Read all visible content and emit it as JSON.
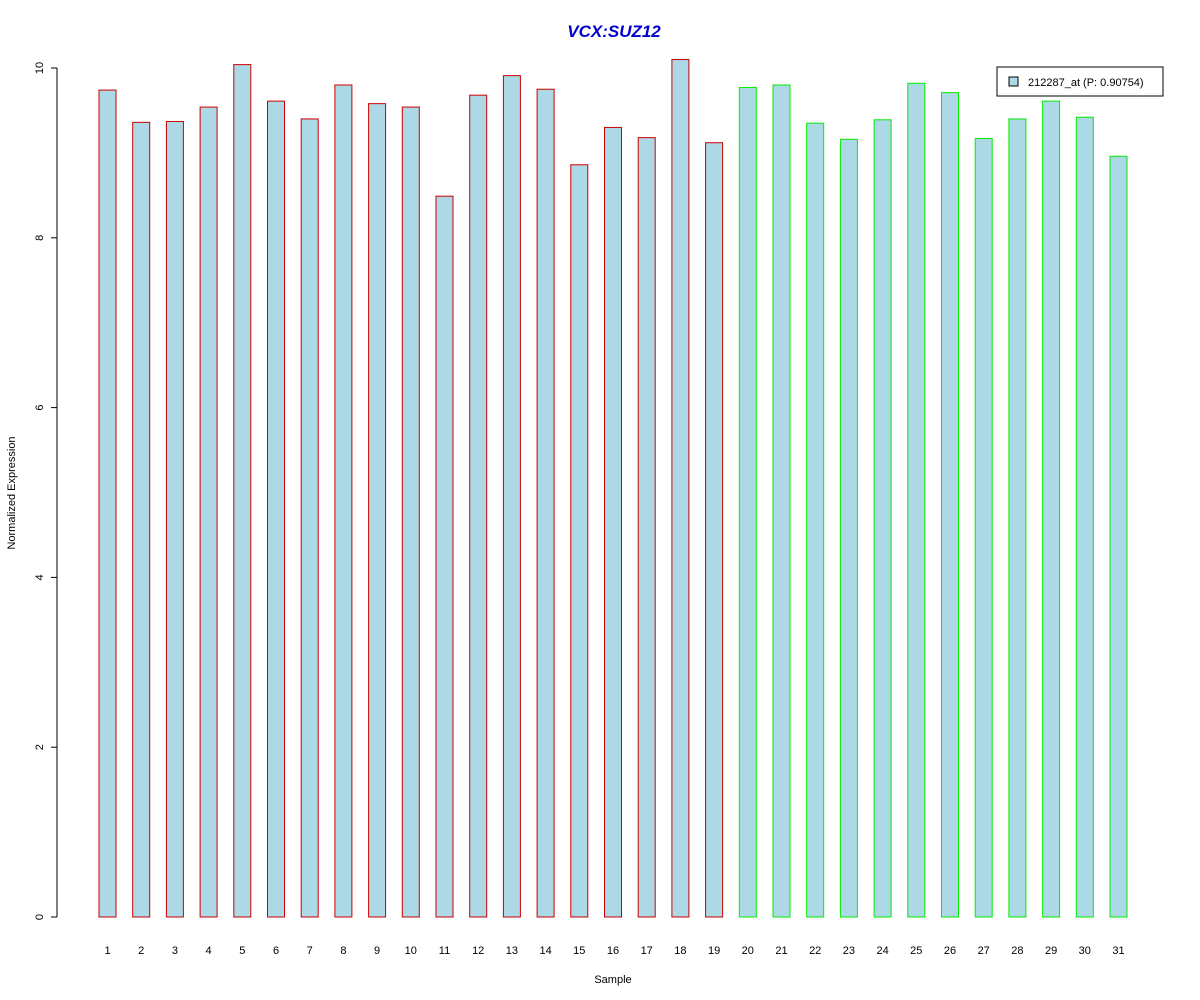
{
  "chart_data": {
    "type": "bar",
    "title": "VCX:SUZ12",
    "xlabel": "Sample",
    "ylabel": "Normalized Expression",
    "ylim": [
      0,
      10
    ],
    "yticks": [
      0,
      2,
      4,
      6,
      8,
      10
    ],
    "grid": false,
    "legend_position": "top-right",
    "categories": [
      "1",
      "2",
      "3",
      "4",
      "5",
      "6",
      "7",
      "8",
      "9",
      "10",
      "11",
      "12",
      "13",
      "14",
      "15",
      "16",
      "17",
      "18",
      "19",
      "20",
      "21",
      "22",
      "23",
      "24",
      "25",
      "26",
      "27",
      "28",
      "29",
      "30",
      "31"
    ],
    "series": [
      {
        "name": "212287_at (P: 0.90754)",
        "values": [
          9.74,
          9.36,
          9.37,
          9.54,
          10.04,
          9.61,
          9.4,
          9.8,
          9.58,
          9.54,
          8.49,
          9.68,
          9.91,
          9.75,
          8.86,
          9.3,
          9.18,
          10.1,
          9.12,
          9.77,
          9.8,
          9.35,
          9.16,
          9.39,
          9.82,
          9.71,
          9.17,
          9.4,
          9.61,
          9.42,
          8.96
        ]
      }
    ],
    "group_border_colors": [
      "#cc0000",
      "#cc0000",
      "#cc0000",
      "#cc0000",
      "#cc0000",
      "#cc0000",
      "#cc0000",
      "#cc0000",
      "#cc0000",
      "#cc0000",
      "#cc0000",
      "#cc0000",
      "#cc0000",
      "#cc0000",
      "#cc0000",
      "#cc0000",
      "#cc0000",
      "#cc0000",
      "#cc0000",
      "#00ee00",
      "#00ee00",
      "#00ee00",
      "#00ee00",
      "#00ee00",
      "#00ee00",
      "#00ee00",
      "#00ee00",
      "#00ee00",
      "#00ee00",
      "#00ee00",
      "#00ee00"
    ]
  },
  "colors": {
    "bar_fill": "#add8e6",
    "title": "#0000cc",
    "axis": "#000000"
  }
}
